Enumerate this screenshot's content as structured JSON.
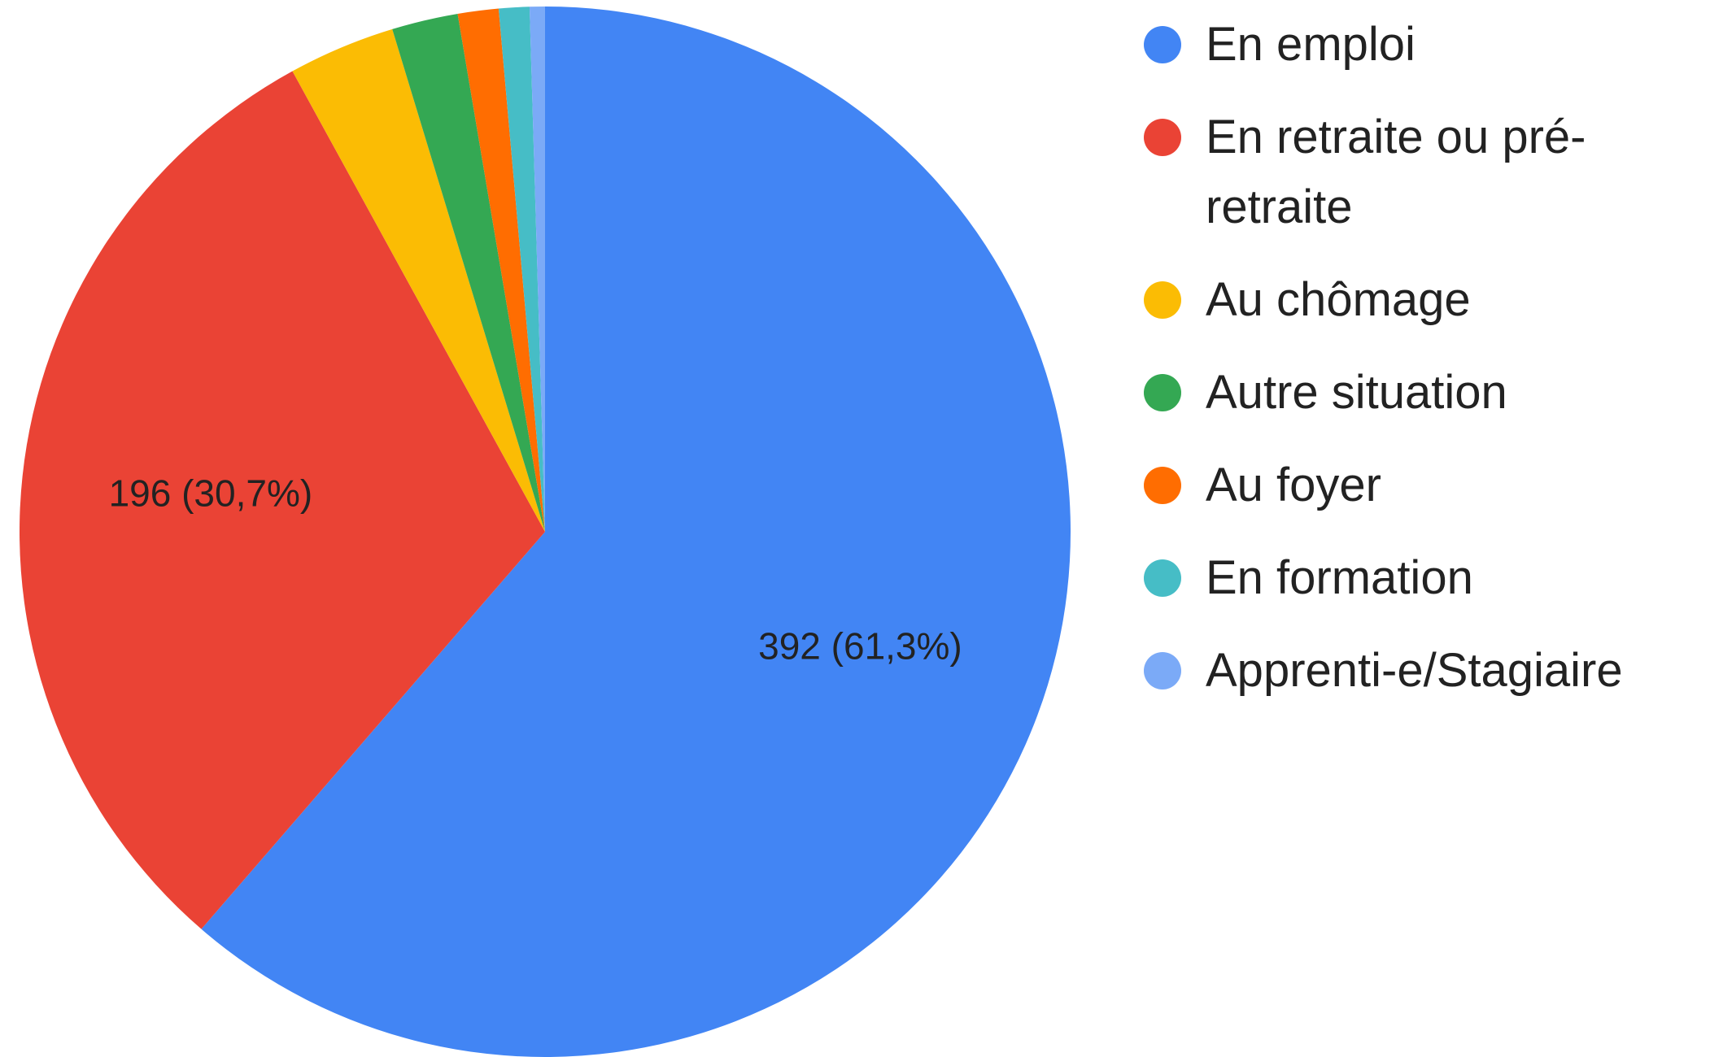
{
  "chart_data": {
    "type": "pie",
    "categories": [
      "En emploi",
      "En retraite ou pré-retraite",
      "Au chômage",
      "Autre situation",
      "Au foyer",
      "En formation",
      "Apprenti-e/Stagiaire"
    ],
    "values": [
      392,
      196,
      21,
      13,
      8,
      6,
      3
    ],
    "value_labels": [
      "392 (61,3%)",
      "196 (30,7%)",
      null,
      null,
      null,
      null,
      null
    ],
    "colors": [
      "#4285f4",
      "#ea4335",
      "#fbbc04",
      "#34a853",
      "#ff6d01",
      "#46bdc6",
      "#7baaf7"
    ],
    "legend": "right"
  }
}
